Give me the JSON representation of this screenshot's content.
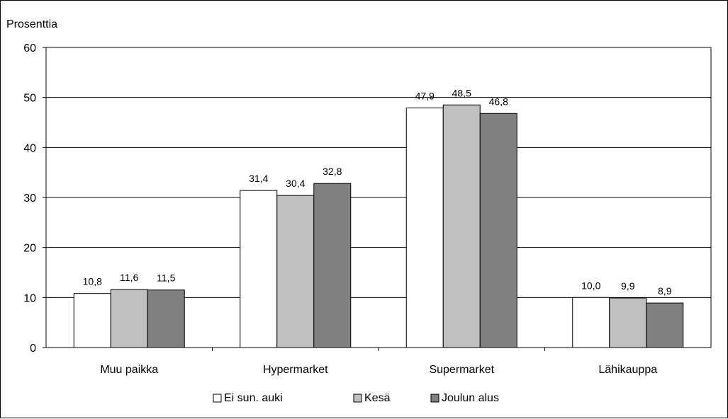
{
  "chart_data": {
    "type": "bar",
    "title": "",
    "ylabel": "Prosenttia",
    "xlabel": "",
    "ylim": [
      0,
      60
    ],
    "yticks": [
      0,
      10,
      20,
      30,
      40,
      50,
      60
    ],
    "categories": [
      "Muu paikka",
      "Hypermarket",
      "Supermarket",
      "Lähikauppa"
    ],
    "series": [
      {
        "name": "Ei sun. auki",
        "color": "#ffffff",
        "values": [
          10.8,
          31.4,
          47.9,
          10.0
        ],
        "labels": [
          "10,8",
          "31,4",
          "47,9",
          "10,0"
        ]
      },
      {
        "name": "Kesä",
        "color": "#c0c0c0",
        "values": [
          11.6,
          30.4,
          48.5,
          9.9
        ],
        "labels": [
          "11,6",
          "30,4",
          "48,5",
          "9,9"
        ]
      },
      {
        "name": "Joulun alus",
        "color": "#808080",
        "values": [
          11.5,
          32.8,
          46.8,
          8.9
        ],
        "labels": [
          "11,5",
          "32,8",
          "46,8",
          "8,9"
        ]
      }
    ],
    "grid": true,
    "legend_position": "bottom"
  }
}
